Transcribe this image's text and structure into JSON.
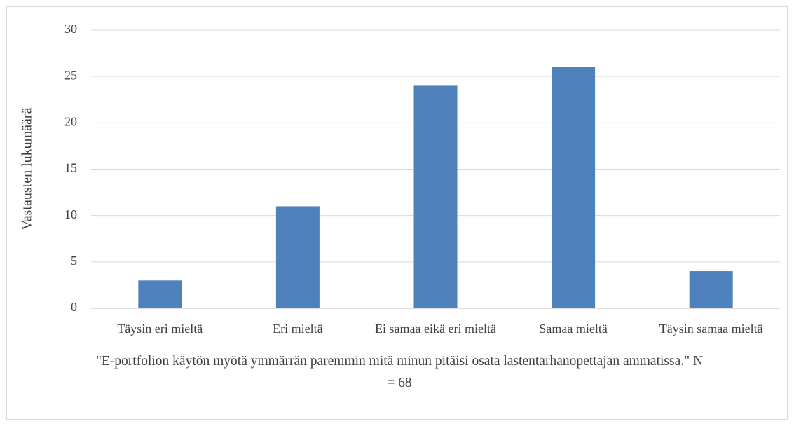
{
  "chart_data": {
    "type": "bar",
    "categories": [
      "Täysin eri mieltä",
      "Eri mieltä",
      "Ei samaa eikä eri mieltä",
      "Samaa mieltä",
      "Täysin samaa mieltä"
    ],
    "values": [
      3,
      11,
      24,
      26,
      4
    ],
    "color": "#4f81bd",
    "ylabel": "Vastausten lukumäärä",
    "xlabel": "\"E-portfolion käytön myötä ymmärrän paremmin mitä minun pitäisi osata lastentarhanopettajan ammatissa.\" N = 68",
    "ylim": [
      0,
      30
    ],
    "yticks": [
      0,
      5,
      10,
      15,
      20,
      25,
      30
    ],
    "grid": true
  }
}
